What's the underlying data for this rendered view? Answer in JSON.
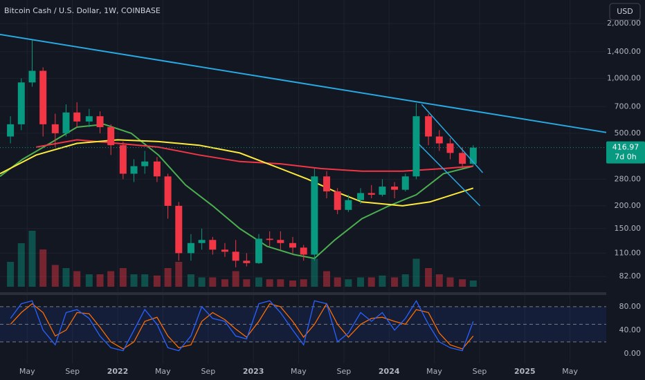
{
  "chart_data": {
    "type": "candlestick",
    "title": "Bitcoin Cash / U.S. Dollar, 1W, COINBASE",
    "currency": "USD",
    "log_scale": true,
    "up_color": "#089981",
    "down_color": "#f23645",
    "xlim": [
      2021.133,
      2025.6
    ],
    "xticks": [
      {
        "value": 2021.333,
        "label": "May"
      },
      {
        "value": 2021.667,
        "label": "Sep"
      },
      2022,
      {
        "value": 2022.333,
        "label": "May"
      },
      {
        "value": 2022.667,
        "label": "Sep"
      },
      2023,
      {
        "value": 2023.333,
        "label": "May"
      },
      {
        "value": 2023.667,
        "label": "Sep"
      },
      2024,
      {
        "value": 2024.333,
        "label": "May"
      },
      {
        "value": 2024.667,
        "label": "Sep"
      },
      2025,
      {
        "value": 2025.333,
        "label": "May"
      }
    ],
    "ylim": [
      72,
      2690
    ],
    "yticks": [
      {
        "value": 2000,
        "label": "2,000.00"
      },
      {
        "value": 1400,
        "label": "1,400.00"
      },
      {
        "value": 1000,
        "label": "1,000.00"
      },
      {
        "value": 700,
        "label": "700.00"
      },
      {
        "value": 500,
        "label": "500.00"
      },
      {
        "value": 280,
        "label": "280.00"
      },
      {
        "value": 200,
        "label": "200.00"
      },
      {
        "value": 150,
        "label": "150.00"
      },
      {
        "value": 110,
        "label": "110.00"
      },
      {
        "value": 82,
        "label": "82.00"
      }
    ],
    "last_price": {
      "value": 416.97,
      "label": "416.97",
      "countdown": "7d 0h"
    },
    "x": [
      2021.21,
      2021.29,
      2021.37,
      2021.45,
      2021.54,
      2021.62,
      2021.7,
      2021.79,
      2021.87,
      2021.95,
      2022.04,
      2022.12,
      2022.2,
      2022.29,
      2022.37,
      2022.45,
      2022.54,
      2022.62,
      2022.7,
      2022.79,
      2022.87,
      2022.95,
      2023.04,
      2023.12,
      2023.2,
      2023.29,
      2023.37,
      2023.45,
      2023.54,
      2023.62,
      2023.7,
      2023.79,
      2023.87,
      2023.95,
      2024.04,
      2024.12,
      2024.2,
      2024.29,
      2024.37,
      2024.45,
      2024.54,
      2024.62
    ],
    "open": [
      480,
      560,
      950,
      1100,
      560,
      500,
      650,
      580,
      620,
      540,
      430,
      300,
      330,
      350,
      290,
      200,
      110,
      125,
      130,
      115,
      112,
      100,
      97,
      132,
      130,
      125,
      118,
      108,
      290,
      240,
      190,
      215,
      235,
      230,
      255,
      245,
      290,
      620,
      480,
      440,
      390,
      340
    ],
    "high": [
      620,
      1000,
      1640,
      1150,
      640,
      720,
      740,
      680,
      660,
      560,
      450,
      360,
      400,
      370,
      300,
      210,
      140,
      150,
      135,
      125,
      130,
      110,
      140,
      145,
      145,
      135,
      122,
      320,
      310,
      250,
      230,
      250,
      260,
      280,
      270,
      300,
      730,
      640,
      520,
      470,
      420,
      430
    ],
    "low": [
      440,
      520,
      900,
      480,
      420,
      480,
      540,
      540,
      500,
      380,
      280,
      270,
      300,
      270,
      170,
      100,
      100,
      115,
      108,
      105,
      92,
      93,
      96,
      120,
      115,
      110,
      100,
      100,
      220,
      180,
      185,
      205,
      220,
      225,
      220,
      240,
      280,
      430,
      400,
      360,
      320,
      330
    ],
    "close": [
      560,
      950,
      1100,
      560,
      500,
      650,
      580,
      620,
      540,
      430,
      300,
      330,
      350,
      290,
      200,
      110,
      125,
      130,
      115,
      112,
      100,
      97,
      132,
      130,
      125,
      118,
      108,
      290,
      240,
      190,
      215,
      235,
      230,
      255,
      245,
      290,
      620,
      480,
      440,
      390,
      340,
      416.97
    ],
    "volume": [
      40,
      70,
      90,
      60,
      35,
      30,
      25,
      20,
      20,
      25,
      30,
      20,
      20,
      18,
      30,
      40,
      20,
      15,
      15,
      12,
      25,
      12,
      15,
      12,
      12,
      10,
      12,
      45,
      25,
      15,
      12,
      15,
      15,
      18,
      15,
      20,
      45,
      30,
      20,
      15,
      12,
      10
    ],
    "volume_lim": [
      0,
      100
    ],
    "series": [
      {
        "color": "#4caf50",
        "x": [
          2021.133,
          2021.3,
          2021.5,
          2021.7,
          2021.9,
          2022.1,
          2022.3,
          2022.5,
          2022.7,
          2022.9,
          2023.1,
          2023.3,
          2023.45,
          2023.6,
          2023.8,
          2024.0,
          2024.2,
          2024.4,
          2024.62
        ],
        "values": [
          290,
          360,
          440,
          540,
          560,
          500,
          380,
          260,
          200,
          150,
          120,
          108,
          103,
          130,
          170,
          200,
          230,
          300,
          330
        ]
      },
      {
        "color": "#f23645",
        "x": [
          2021.4,
          2021.7,
          2022.0,
          2022.3,
          2022.6,
          2022.9,
          2023.2,
          2023.5,
          2023.8,
          2024.1,
          2024.4,
          2024.62
        ],
        "values": [
          420,
          460,
          440,
          420,
          380,
          350,
          340,
          320,
          310,
          310,
          320,
          330
        ]
      },
      {
        "color": "#ffeb3b",
        "x": [
          2021.133,
          2021.4,
          2021.7,
          2022.0,
          2022.3,
          2022.6,
          2022.9,
          2023.2,
          2023.4,
          2023.6,
          2023.8,
          2024.1,
          2024.3,
          2024.62
        ],
        "values": [
          300,
          380,
          440,
          460,
          450,
          430,
          390,
          320,
          280,
          240,
          210,
          200,
          210,
          250
        ]
      }
    ],
    "trendlines": [
      {
        "color": "#29a9e1",
        "x": [
          2021.133,
          2025.6
        ],
        "values": [
          1740,
          505
        ]
      },
      {
        "color": "#29a9e1",
        "x": [
          2024.24,
          2024.69
        ],
        "values": [
          720,
          304
        ]
      },
      {
        "color": "#29a9e1",
        "x": [
          2024.22,
          2024.67
        ],
        "values": [
          435,
          200
        ]
      }
    ],
    "oscillator": {
      "ylim": [
        -12,
        94
      ],
      "yticks": [
        {
          "value": 80,
          "label": "80.00"
        },
        {
          "value": 40,
          "label": "40.00"
        },
        {
          "value": 0,
          "label": "0.00"
        }
      ],
      "band": [
        20,
        80
      ],
      "mid": 50,
      "k": {
        "color": "#2962ff",
        "values": [
          60,
          85,
          90,
          40,
          15,
          70,
          75,
          60,
          30,
          10,
          5,
          40,
          75,
          50,
          10,
          5,
          30,
          80,
          60,
          55,
          30,
          25,
          85,
          90,
          70,
          40,
          15,
          90,
          85,
          20,
          35,
          70,
          55,
          70,
          40,
          60,
          90,
          50,
          20,
          10,
          5,
          55
        ]
      },
      "d": {
        "color": "#ff6d00",
        "values": [
          50,
          70,
          85,
          70,
          30,
          40,
          70,
          68,
          45,
          20,
          8,
          20,
          55,
          62,
          30,
          10,
          15,
          55,
          70,
          58,
          42,
          28,
          55,
          85,
          80,
          55,
          28,
          50,
          85,
          50,
          28,
          50,
          60,
          62,
          55,
          50,
          75,
          70,
          35,
          15,
          8,
          30
        ]
      }
    }
  }
}
